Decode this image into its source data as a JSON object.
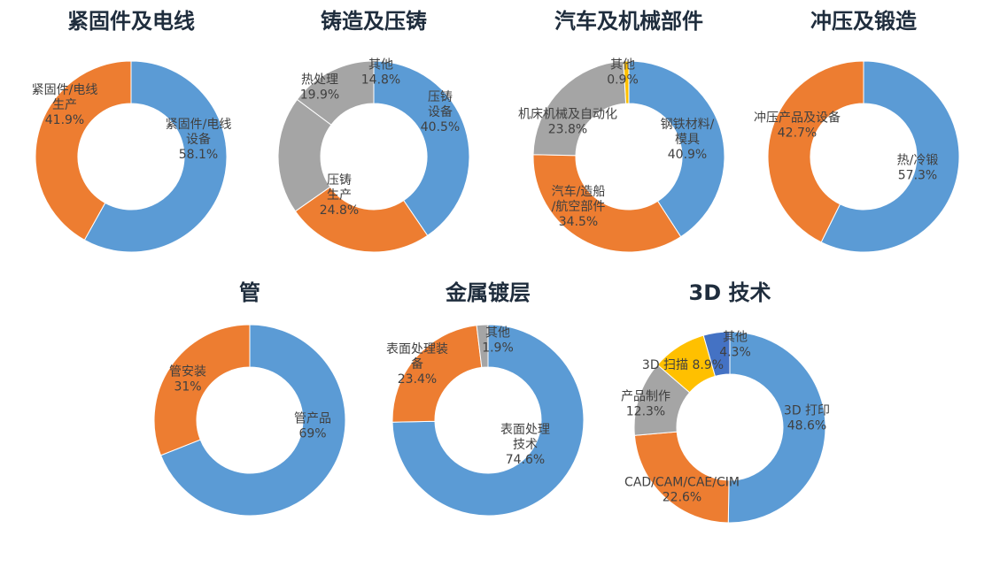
{
  "colors": {
    "blue": "#5b9bd5",
    "orange": "#ed7d31",
    "gray": "#a5a5a5",
    "yellow": "#ffc000",
    "darkblue": "#4472c4"
  },
  "chart_data": [
    {
      "type": "pie",
      "title": "紧固件及电线",
      "slices": [
        {
          "label": "紧固件/电线设备",
          "value": 58.1,
          "color": "blue",
          "text": [
            "紧固件/电线",
            "设备",
            "58.1%"
          ]
        },
        {
          "label": "紧固件/电线生产",
          "value": 41.9,
          "color": "orange",
          "text": [
            "紧固件/电线",
            "生产",
            "41.9%"
          ]
        }
      ]
    },
    {
      "type": "pie",
      "title": "铸造及压铸",
      "slices": [
        {
          "label": "压铸设备",
          "value": 40.5,
          "color": "blue",
          "text": [
            "压铸",
            "设备",
            "40.5%"
          ]
        },
        {
          "label": "压铸生产",
          "value": 24.8,
          "color": "orange",
          "text": [
            "压铸",
            "生产",
            "24.8%"
          ]
        },
        {
          "label": "热处理",
          "value": 19.9,
          "color": "gray",
          "text": [
            "热处理",
            "19.9%"
          ]
        },
        {
          "label": "其他",
          "value": 14.8,
          "color": "gray",
          "text": [
            "其他",
            "14.8%"
          ]
        }
      ]
    },
    {
      "type": "pie",
      "title": "汽车及机械部件",
      "slices": [
        {
          "label": "钢铁材料/模具",
          "value": 40.9,
          "color": "blue",
          "text": [
            "钢铁材料/",
            "模具",
            "40.9%"
          ]
        },
        {
          "label": "汽车/造船/航空部件",
          "value": 34.5,
          "color": "orange",
          "text": [
            "汽车/造船",
            "/航空部件",
            "34.5%"
          ]
        },
        {
          "label": "机床机械及自动化",
          "value": 23.8,
          "color": "gray",
          "text": [
            "机床机械及自动化",
            "23.8%"
          ]
        },
        {
          "label": "其他",
          "value": 0.9,
          "color": "yellow",
          "text": [
            "其他",
            "0.9%"
          ]
        }
      ]
    },
    {
      "type": "pie",
      "title": "冲压及锻造",
      "slices": [
        {
          "label": "热/冷锻",
          "value": 57.3,
          "color": "blue",
          "text": [
            "热/冷锻",
            "57.3%"
          ]
        },
        {
          "label": "冲压产品及设备",
          "value": 42.7,
          "color": "orange",
          "text": [
            "冲压产品及设备",
            "42.7%"
          ]
        }
      ]
    },
    {
      "type": "pie",
      "title": "管",
      "slices": [
        {
          "label": "管产品",
          "value": 69,
          "color": "blue",
          "text": [
            "管产品",
            "69%"
          ]
        },
        {
          "label": "管安装",
          "value": 31,
          "color": "orange",
          "text": [
            "管安装",
            "31%"
          ]
        }
      ]
    },
    {
      "type": "pie",
      "title": "金属镀层",
      "slices": [
        {
          "label": "表面处理技术",
          "value": 74.6,
          "color": "blue",
          "text": [
            "表面处理",
            "技术",
            "74.6%"
          ]
        },
        {
          "label": "表面处理装备",
          "value": 23.4,
          "color": "orange",
          "text": [
            "表面处理装",
            "备",
            "23.4%"
          ]
        },
        {
          "label": "其他",
          "value": 1.9,
          "color": "gray",
          "text": [
            "其他",
            "1.9%"
          ]
        }
      ]
    },
    {
      "type": "pie",
      "title": "3D 技术",
      "slices": [
        {
          "label": "3D 打印",
          "value": 48.6,
          "color": "blue",
          "text": [
            "3D 打印",
            "48.6%"
          ]
        },
        {
          "label": "CAD/CAM/CAE/CIM",
          "value": 22.6,
          "color": "orange",
          "text": [
            "CAD/CAM/CAE/CIM",
            "22.6%"
          ]
        },
        {
          "label": "产品制作",
          "value": 12.3,
          "color": "gray",
          "text": [
            "产品制作",
            "12.3%"
          ]
        },
        {
          "label": "3D 扫描",
          "value": 8.9,
          "color": "yellow",
          "text": [
            "3D 扫描 8.9%"
          ]
        },
        {
          "label": "其他",
          "value": 4.3,
          "color": "darkblue",
          "text": [
            "其他",
            "4.3%"
          ]
        }
      ]
    }
  ]
}
